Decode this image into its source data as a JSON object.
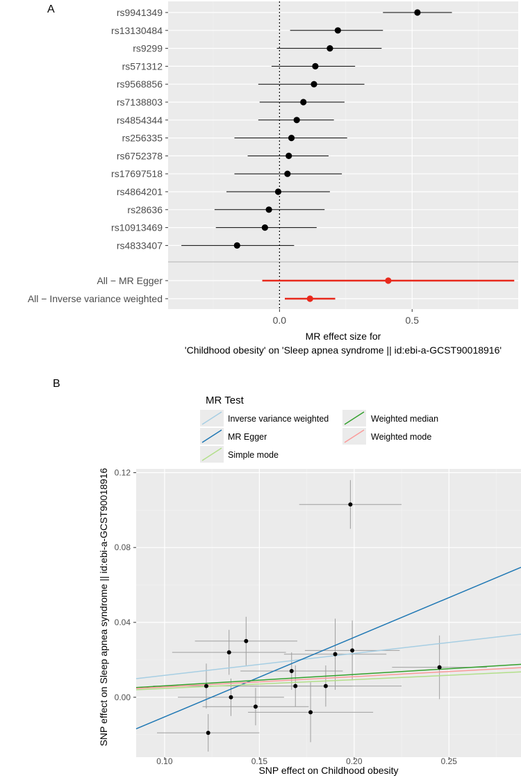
{
  "colors": {
    "panel_bg": "#ebebeb",
    "grid_major": "#ffffff",
    "grid_minor": "#f4f4f4",
    "point": "#000000",
    "summary": "#e8291c",
    "errorbar_b": "#9e9e9e",
    "ivw": "#a6cee3",
    "mr_egger": "#1f78b4",
    "simple_mode": "#b2df8a",
    "weighted_median": "#33a02c",
    "weighted_mode": "#fb9a99"
  },
  "chart_data": [
    {
      "panel_label": "A",
      "type": "forest",
      "xlabel_line1": "MR effect size for",
      "xlabel_line2": "'Childhood obesity' on 'Sleep apnea syndrome || id:ebi-a-GCST90018916'",
      "xlim": [
        -0.42,
        0.9
      ],
      "xticks": [
        {
          "v": 0.0,
          "label": "0.0"
        },
        {
          "v": 0.5,
          "label": "0.5"
        }
      ],
      "snps": [
        {
          "label": "rs9941349",
          "est": 0.52,
          "lo": 0.39,
          "hi": 0.65
        },
        {
          "label": "rs13130484",
          "est": 0.22,
          "lo": 0.04,
          "hi": 0.39
        },
        {
          "label": "rs9299",
          "est": 0.19,
          "lo": -0.01,
          "hi": 0.385
        },
        {
          "label": "rs571312",
          "est": 0.135,
          "lo": -0.03,
          "hi": 0.285
        },
        {
          "label": "rs9568856",
          "est": 0.13,
          "lo": -0.08,
          "hi": 0.32
        },
        {
          "label": "rs7138803",
          "est": 0.09,
          "lo": -0.075,
          "hi": 0.245
        },
        {
          "label": "rs4854344",
          "est": 0.065,
          "lo": -0.08,
          "hi": 0.205
        },
        {
          "label": "rs256335",
          "est": 0.045,
          "lo": -0.17,
          "hi": 0.255
        },
        {
          "label": "rs6752378",
          "est": 0.035,
          "lo": -0.12,
          "hi": 0.185
        },
        {
          "label": "rs17697518",
          "est": 0.03,
          "lo": -0.17,
          "hi": 0.235
        },
        {
          "label": "rs4864201",
          "est": -0.005,
          "lo": -0.2,
          "hi": 0.19
        },
        {
          "label": "rs28636",
          "est": -0.04,
          "lo": -0.245,
          "hi": 0.17
        },
        {
          "label": "rs10913469",
          "est": -0.055,
          "lo": -0.24,
          "hi": 0.14
        },
        {
          "label": "rs4833407",
          "est": -0.16,
          "lo": -0.37,
          "hi": 0.055
        }
      ],
      "summaries": [
        {
          "label": "All − MR Egger",
          "est": 0.41,
          "lo": -0.065,
          "hi": 0.885
        },
        {
          "label": "All − Inverse variance weighted",
          "est": 0.115,
          "lo": 0.02,
          "hi": 0.21
        }
      ]
    },
    {
      "panel_label": "B",
      "type": "scatter",
      "xlabel": "SNP effect on Childhood obesity",
      "ylabel": "SNP effect on Sleep apnea syndrome || id:ebi-a-GCST90018916",
      "xlim": [
        0.085,
        0.288
      ],
      "ylim": [
        -0.032,
        0.122
      ],
      "xticks": [
        {
          "v": 0.1,
          "label": "0.10"
        },
        {
          "v": 0.15,
          "label": "0.15"
        },
        {
          "v": 0.2,
          "label": "0.20"
        },
        {
          "v": 0.25,
          "label": "0.25"
        }
      ],
      "yticks": [
        {
          "v": 0.0,
          "label": "0.00"
        },
        {
          "v": 0.04,
          "label": "0.04"
        },
        {
          "v": 0.08,
          "label": "0.08"
        },
        {
          "v": 0.12,
          "label": "0.12"
        }
      ],
      "legend_title": "MR Test",
      "legend": [
        {
          "key": "ivw",
          "label": "Inverse variance weighted"
        },
        {
          "key": "weighted_median",
          "label": "Weighted median"
        },
        {
          "key": "mr_egger",
          "label": "MR Egger"
        },
        {
          "key": "weighted_mode",
          "label": "Weighted mode"
        },
        {
          "key": "simple_mode",
          "label": "Simple mode"
        }
      ],
      "points": [
        {
          "x": 0.198,
          "y": 0.103,
          "xse": 0.027,
          "yse": 0.013
        },
        {
          "x": 0.143,
          "y": 0.03,
          "xse": 0.027,
          "yse": 0.013
        },
        {
          "x": 0.134,
          "y": 0.024,
          "xse": 0.03,
          "yse": 0.012
        },
        {
          "x": 0.199,
          "y": 0.025,
          "xse": 0.025,
          "yse": 0.016
        },
        {
          "x": 0.19,
          "y": 0.023,
          "xse": 0.027,
          "yse": 0.019
        },
        {
          "x": 0.167,
          "y": 0.014,
          "xse": 0.027,
          "yse": 0.01
        },
        {
          "x": 0.245,
          "y": 0.016,
          "xse": 0.025,
          "yse": 0.017
        },
        {
          "x": 0.122,
          "y": 0.006,
          "xse": 0.028,
          "yse": 0.012
        },
        {
          "x": 0.169,
          "y": 0.006,
          "xse": 0.03,
          "yse": 0.011
        },
        {
          "x": 0.185,
          "y": 0.006,
          "xse": 0.04,
          "yse": 0.011
        },
        {
          "x": 0.135,
          "y": 0.0,
          "xse": 0.028,
          "yse": 0.01
        },
        {
          "x": 0.148,
          "y": -0.005,
          "xse": 0.028,
          "yse": 0.01
        },
        {
          "x": 0.177,
          "y": -0.008,
          "xse": 0.033,
          "yse": 0.016
        },
        {
          "x": 0.123,
          "y": -0.019,
          "xse": 0.027,
          "yse": 0.01
        }
      ],
      "lines": [
        {
          "key": "ivw",
          "intercept": 0.0,
          "slope": 0.117
        },
        {
          "key": "mr_egger",
          "intercept": -0.053,
          "slope": 0.425
        },
        {
          "key": "simple_mode",
          "intercept": 0.0,
          "slope": 0.047
        },
        {
          "key": "weighted_median",
          "intercept": 0.0,
          "slope": 0.061
        },
        {
          "key": "weighted_mode",
          "intercept": 0.0,
          "slope": 0.055
        }
      ]
    }
  ]
}
